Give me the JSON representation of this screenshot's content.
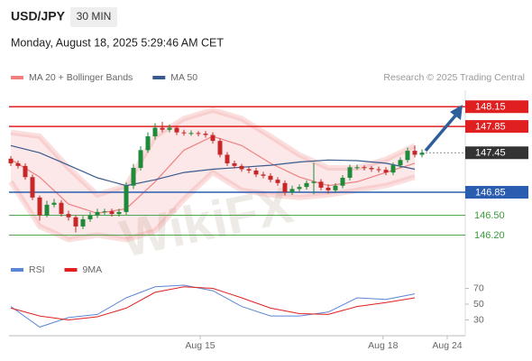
{
  "header": {
    "symbol": "USD/JPY",
    "timeframe": "30 MIN",
    "timestamp": "Monday, August 18, 2025 5:29:46 AM CET"
  },
  "chart_data": [
    {
      "type": "candlestick",
      "credit": "Research © 2025 Trading Central",
      "watermark": "WikiFX",
      "up_color": "#1e8a3a",
      "down_color": "#c62828",
      "xlim": [
        -0.25,
        63
      ],
      "ylim": [
        146.0,
        148.4
      ],
      "x": [
        0,
        1,
        2,
        3,
        4,
        5,
        6,
        7,
        8,
        9,
        10,
        11,
        12,
        13,
        14,
        15,
        16,
        17,
        18,
        19,
        20,
        21,
        22,
        23,
        24,
        25,
        26,
        27,
        28,
        29,
        30,
        31,
        32,
        33,
        34,
        35,
        36,
        37,
        38,
        39,
        40,
        41,
        42,
        43,
        44,
        45,
        46,
        47,
        48,
        49,
        50,
        51,
        52,
        53,
        54,
        55,
        56,
        57
      ],
      "open": [
        147.36,
        147.29,
        147.25,
        147.08,
        146.77,
        146.5,
        146.66,
        146.69,
        146.52,
        146.47,
        146.33,
        146.44,
        146.5,
        146.55,
        146.56,
        146.52,
        146.55,
        146.95,
        147.22,
        147.49,
        147.7,
        147.83,
        147.8,
        147.83,
        147.76,
        147.75,
        147.75,
        147.74,
        147.72,
        147.63,
        147.42,
        147.29,
        147.25,
        147.2,
        147.18,
        147.12,
        147.1,
        147.04,
        146.99,
        146.85,
        146.9,
        146.93,
        146.99,
        147.01,
        146.92,
        146.88,
        146.95,
        147.07,
        147.23,
        147.23,
        147.22,
        147.2,
        147.19,
        147.15,
        147.26,
        147.34,
        147.48,
        147.42
      ],
      "high": [
        147.4,
        147.33,
        147.29,
        147.12,
        146.8,
        146.72,
        146.75,
        146.73,
        146.57,
        146.5,
        146.49,
        146.55,
        146.6,
        146.6,
        146.6,
        146.6,
        147.0,
        147.28,
        147.55,
        147.76,
        147.9,
        147.92,
        147.88,
        147.86,
        147.8,
        147.79,
        147.78,
        147.78,
        147.76,
        147.67,
        147.46,
        147.33,
        147.28,
        147.24,
        147.22,
        147.16,
        147.14,
        147.08,
        147.03,
        146.95,
        146.97,
        147.03,
        147.3,
        147.05,
        146.97,
        146.99,
        147.11,
        147.27,
        147.27,
        147.26,
        147.25,
        147.24,
        147.23,
        147.3,
        147.38,
        147.53,
        147.56,
        147.5
      ],
      "low": [
        147.25,
        147.21,
        147.04,
        146.73,
        146.42,
        146.47,
        146.62,
        146.48,
        146.42,
        146.24,
        146.29,
        146.4,
        146.46,
        146.51,
        146.48,
        146.48,
        146.51,
        146.9,
        147.18,
        147.45,
        147.65,
        147.76,
        147.76,
        147.72,
        147.71,
        147.71,
        147.7,
        147.68,
        147.59,
        147.38,
        147.25,
        147.21,
        147.16,
        147.14,
        147.08,
        147.06,
        147.0,
        146.95,
        146.8,
        146.81,
        146.86,
        146.89,
        146.82,
        146.88,
        146.83,
        146.84,
        146.91,
        147.03,
        147.19,
        147.18,
        147.16,
        147.15,
        147.11,
        147.11,
        147.22,
        147.3,
        147.38,
        147.38
      ],
      "close": [
        147.29,
        147.25,
        147.08,
        146.77,
        146.5,
        146.66,
        146.69,
        146.52,
        146.47,
        146.33,
        146.44,
        146.5,
        146.55,
        146.56,
        146.52,
        146.55,
        146.95,
        147.22,
        147.49,
        147.7,
        147.83,
        147.8,
        147.83,
        147.76,
        147.75,
        147.75,
        147.74,
        147.72,
        147.63,
        147.42,
        147.29,
        147.25,
        147.2,
        147.18,
        147.12,
        147.1,
        147.04,
        146.99,
        146.85,
        146.9,
        146.93,
        146.99,
        147.01,
        146.92,
        146.88,
        146.95,
        147.07,
        147.23,
        147.23,
        147.22,
        147.2,
        147.19,
        147.15,
        147.26,
        147.34,
        147.48,
        147.42,
        147.45
      ],
      "series": [
        {
          "name": "MA 20 + Bollinger Bands",
          "color": "#f08080",
          "x": [
            0,
            4,
            8,
            12,
            16,
            20,
            24,
            28,
            32,
            36,
            40,
            44,
            48,
            52,
            56
          ],
          "values": [
            147.35,
            147.08,
            146.67,
            146.53,
            146.6,
            147.01,
            147.49,
            147.7,
            147.56,
            147.29,
            147.08,
            146.95,
            147.01,
            147.15,
            147.29
          ],
          "upper": [
            147.76,
            147.7,
            147.22,
            146.81,
            146.95,
            147.7,
            147.97,
            148.1,
            147.97,
            147.7,
            147.42,
            147.22,
            147.22,
            147.35,
            147.56
          ],
          "lower": [
            147.01,
            146.33,
            146.13,
            146.2,
            146.13,
            146.26,
            146.74,
            147.15,
            146.88,
            146.81,
            146.77,
            146.81,
            146.88,
            146.95,
            147.08
          ]
        },
        {
          "name": "MA 50",
          "color": "#3a5a8c",
          "x": [
            0,
            4,
            8,
            12,
            16,
            20,
            24,
            28,
            32,
            36,
            40,
            44,
            48,
            52,
            56
          ],
          "values": [
            147.56,
            147.45,
            147.26,
            147.07,
            146.95,
            147.04,
            147.15,
            147.2,
            147.23,
            147.26,
            147.31,
            147.34,
            147.33,
            147.29,
            147.2
          ]
        }
      ],
      "levels": [
        {
          "value": 148.15,
          "color": "#e02020",
          "boxed": true
        },
        {
          "value": 147.85,
          "color": "#e02020",
          "boxed": true
        },
        {
          "value": 147.45,
          "color": "#333333",
          "boxed": true,
          "dashed": true
        },
        {
          "value": 146.85,
          "color": "#2a5db0",
          "boxed": true
        },
        {
          "value": 146.5,
          "label": "146.50",
          "color": "#3a9a3a",
          "boxed": false
        },
        {
          "value": 146.2,
          "label": "146.20",
          "color": "#3a9a3a",
          "boxed": false
        }
      ]
    },
    {
      "type": "line",
      "xlim": [
        -0.25,
        63
      ],
      "ylim": [
        10,
        90
      ],
      "yticks": [
        30,
        50,
        70
      ],
      "xticks": [
        {
          "value": 26.25,
          "label": "Aug 15"
        },
        {
          "value": 51.6,
          "label": "Aug 18"
        },
        {
          "value": 60.5,
          "label": "Aug 24"
        }
      ],
      "series": [
        {
          "name": "RSI",
          "color": "#5b86d6",
          "x": [
            0,
            4,
            8,
            12,
            16,
            20,
            24,
            28,
            32,
            36,
            40,
            44,
            48,
            52,
            56
          ],
          "values": [
            47,
            21,
            33,
            37,
            58,
            72,
            74,
            67,
            47,
            35,
            35,
            40,
            58,
            56,
            63
          ]
        },
        {
          "name": "9MA",
          "color": "#e02020",
          "x": [
            0,
            4,
            8,
            12,
            16,
            20,
            24,
            28,
            32,
            36,
            40,
            44,
            48,
            52,
            56
          ],
          "values": [
            45,
            35,
            30,
            34,
            45,
            65,
            72,
            70,
            58,
            45,
            38,
            37,
            47,
            52,
            58
          ]
        }
      ]
    }
  ]
}
